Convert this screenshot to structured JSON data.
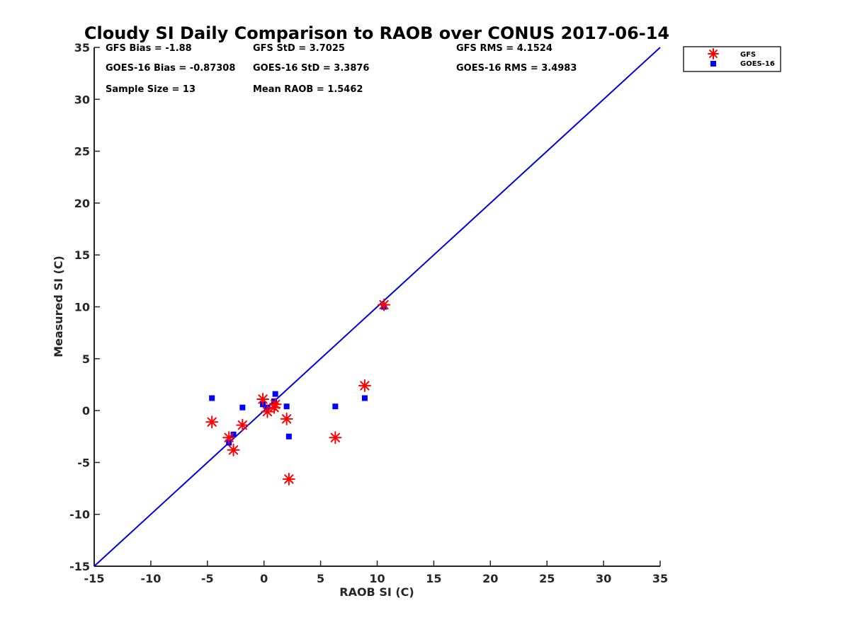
{
  "chart_data": {
    "type": "scatter",
    "title": "Cloudy SI Daily Comparison to RAOB over CONUS 2017-06-14",
    "xlabel": "RAOB SI (C)",
    "ylabel": "Measured SI (C)",
    "xlim": [
      -15,
      35
    ],
    "ylim": [
      -15,
      35
    ],
    "xticks": [
      -15,
      -10,
      -5,
      0,
      5,
      10,
      15,
      20,
      25,
      30,
      35
    ],
    "yticks": [
      -15,
      -10,
      -5,
      0,
      5,
      10,
      15,
      20,
      25,
      30,
      35
    ],
    "grid": false,
    "legend_position": "top-right outside",
    "reference_line": {
      "from": [
        -15,
        -15
      ],
      "to": [
        35,
        35
      ],
      "color": "#0000dd"
    },
    "stats": [
      {
        "key": "gfs-bias",
        "text": "GFS Bias = -1.88"
      },
      {
        "key": "gfs-std",
        "text": "GFS StD = 3.7025"
      },
      {
        "key": "gfs-rms",
        "text": "GFS RMS = 4.1524"
      },
      {
        "key": "goes16-bias",
        "text": "GOES-16 Bias = -0.87308"
      },
      {
        "key": "goes16-std",
        "text": "GOES-16 StD = 3.3876"
      },
      {
        "key": "goes16-rms",
        "text": "GOES-16 RMS = 3.4983"
      },
      {
        "key": "sample-size",
        "text": "Sample Size = 13"
      },
      {
        "key": "mean-raob",
        "text": "Mean RAOB = 1.5462"
      }
    ],
    "series": [
      {
        "name": "GFS",
        "marker": "asterisk",
        "color": "#ff0000",
        "points": [
          [
            -4.6,
            -1.1
          ],
          [
            -3.1,
            -2.6
          ],
          [
            -2.7,
            -3.8
          ],
          [
            -1.9,
            -1.4
          ],
          [
            -0.1,
            1.1
          ],
          [
            0.3,
            -0.1
          ],
          [
            0.9,
            0.3
          ],
          [
            1.0,
            0.6
          ],
          [
            2.0,
            -0.8
          ],
          [
            2.2,
            -6.6
          ],
          [
            6.3,
            -2.6
          ],
          [
            8.9,
            2.4
          ],
          [
            10.6,
            10.2
          ]
        ]
      },
      {
        "name": "GOES-16",
        "marker": "square",
        "color": "#0000ff",
        "points": [
          [
            -4.6,
            1.2
          ],
          [
            -3.1,
            -3.1
          ],
          [
            -2.7,
            -2.3
          ],
          [
            -1.9,
            0.3
          ],
          [
            -0.1,
            0.6
          ],
          [
            0.3,
            0.3
          ],
          [
            0.9,
            0.9
          ],
          [
            1.0,
            1.6
          ],
          [
            2.0,
            0.4
          ],
          [
            2.2,
            -2.5
          ],
          [
            6.3,
            0.4
          ],
          [
            8.9,
            1.2
          ],
          [
            10.6,
            10.0
          ]
        ]
      }
    ]
  }
}
